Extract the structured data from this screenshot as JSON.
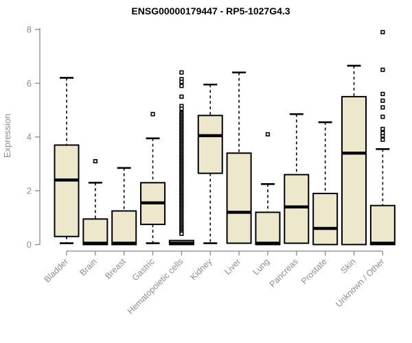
{
  "colors": {
    "box_fill": "#ede8cc",
    "box_stroke": "#000000",
    "median": "#000000",
    "whisker": "#000000",
    "axis": "#888888",
    "axis_text": "#8c8c8c",
    "title": "#000000",
    "outlier_fill": "#ffffff",
    "background": "#ffffff"
  },
  "chart_data": {
    "type": "boxplot",
    "title": "ENSG00000179447 - RP5-1027G4.3",
    "xlabel": "",
    "ylabel": "Expression",
    "ylim": [
      0,
      8
    ],
    "y_ticks": [
      0,
      2,
      4,
      6,
      8
    ],
    "grid": false,
    "legend": "none",
    "categories": [
      "Bladder",
      "Brain",
      "Breast",
      "Gastric",
      "Hematopoietic cells",
      "Kidney",
      "Liver",
      "Lung",
      "Pancreas",
      "Prostate",
      "Skin",
      "Unknown / Other"
    ],
    "series": [
      {
        "name": "Bladder",
        "whisker_low": 0.05,
        "q1": 0.3,
        "median": 2.4,
        "q3": 3.7,
        "whisker_high": 6.2,
        "outliers": []
      },
      {
        "name": "Brain",
        "whisker_low": 0,
        "q1": 0,
        "median": 0.05,
        "q3": 0.95,
        "whisker_high": 2.3,
        "outliers": [
          3.1
        ]
      },
      {
        "name": "Breast",
        "whisker_low": 0,
        "q1": 0,
        "median": 0.05,
        "q3": 1.25,
        "whisker_high": 2.85,
        "outliers": []
      },
      {
        "name": "Gastric",
        "whisker_low": 0.05,
        "q1": 0.75,
        "median": 1.55,
        "q3": 2.3,
        "whisker_high": 3.95,
        "outliers": [
          4.85
        ]
      },
      {
        "name": "Hematopoietic cells",
        "whisker_low": 0,
        "q1": 0,
        "median": 0.05,
        "q3": 0.15,
        "whisker_high": 0.15,
        "outliers": [
          6.4,
          6.15,
          6.05,
          5.9,
          5.5,
          5.15,
          5.05,
          4.9,
          4.85,
          4.8,
          4.75,
          4.7,
          4.65,
          4.6,
          4.55,
          4.5,
          4.45,
          4.4,
          4.35,
          4.3,
          4.25,
          4.2,
          4.15,
          4.1,
          4.05,
          4.0,
          3.95,
          3.9,
          3.85,
          3.8,
          3.75,
          3.7,
          3.65,
          3.6,
          3.55,
          3.5,
          3.45,
          3.4,
          3.35,
          3.3,
          3.25,
          3.2,
          3.15,
          3.1,
          3.05,
          3.0,
          2.95,
          2.9,
          2.85,
          2.8,
          2.75,
          2.7,
          2.65,
          2.6,
          2.55,
          2.5,
          2.45,
          2.4,
          2.35,
          2.3,
          2.25,
          2.2,
          2.15,
          2.1,
          2.05,
          2.0,
          1.95,
          1.9,
          1.85,
          1.8,
          1.75,
          1.7,
          1.65,
          1.6,
          1.55,
          1.5,
          1.45,
          1.4,
          1.35,
          1.3,
          1.25,
          1.2,
          1.15,
          1.1,
          1.05,
          1.0,
          0.95,
          0.9,
          0.85,
          0.8,
          0.75,
          0.7,
          0.65,
          0.6,
          0.55,
          0.5,
          0.45,
          0.4
        ]
      },
      {
        "name": "Kidney",
        "whisker_low": 0.05,
        "q1": 2.65,
        "median": 4.05,
        "q3": 4.8,
        "whisker_high": 5.95,
        "outliers": []
      },
      {
        "name": "Liver",
        "whisker_low": 0.05,
        "q1": 0.05,
        "median": 1.2,
        "q3": 3.4,
        "whisker_high": 6.4,
        "outliers": []
      },
      {
        "name": "Lung",
        "whisker_low": 0,
        "q1": 0,
        "median": 0.05,
        "q3": 1.2,
        "whisker_high": 2.25,
        "outliers": [
          4.1
        ]
      },
      {
        "name": "Pancreas",
        "whisker_low": 0.05,
        "q1": 0.05,
        "median": 1.4,
        "q3": 2.6,
        "whisker_high": 4.85,
        "outliers": []
      },
      {
        "name": "Prostate",
        "whisker_low": 0,
        "q1": 0,
        "median": 0.6,
        "q3": 1.9,
        "whisker_high": 4.55,
        "outliers": []
      },
      {
        "name": "Skin",
        "whisker_low": 0,
        "q1": 0,
        "median": 3.4,
        "q3": 5.5,
        "whisker_high": 6.65,
        "outliers": []
      },
      {
        "name": "Unknown / Other",
        "whisker_low": 0,
        "q1": 0,
        "median": 0.05,
        "q3": 1.45,
        "whisker_high": 3.55,
        "outliers": [
          3.9,
          4.05,
          4.15,
          4.3,
          4.75,
          5.1,
          5.35,
          5.6,
          6.5,
          7.9
        ]
      }
    ]
  }
}
